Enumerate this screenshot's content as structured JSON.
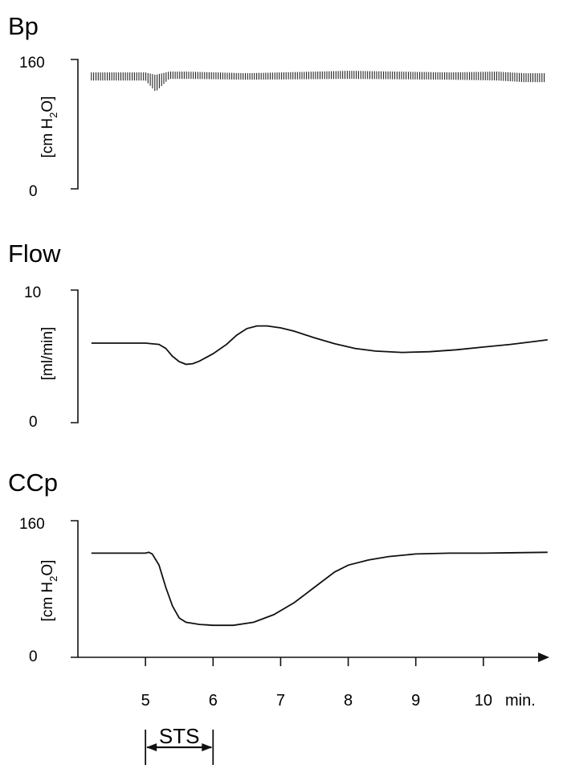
{
  "chart_data": [
    {
      "id": "bp",
      "type": "line",
      "title": "Bp",
      "ylabel": "[cm H2O]",
      "ylabel_main": "[cm H",
      "ylabel_sub": "2",
      "ylabel_end": "O]",
      "ylim": [
        0,
        160
      ],
      "yticks": [
        {
          "value": 0,
          "label": "0"
        },
        {
          "value": 160,
          "label": "160"
        }
      ],
      "xlim": [
        4.0,
        11.0
      ],
      "series": [
        {
          "band": true,
          "x": [
            4.2,
            5.0,
            5.15,
            5.35,
            5.6,
            6.5,
            8.0,
            9.5,
            10.2,
            10.6,
            10.9
          ],
          "upper": [
            144,
            144,
            141,
            145,
            145,
            143,
            146,
            144,
            145,
            143,
            143
          ],
          "lower": [
            134,
            134,
            120,
            136,
            136,
            135,
            136,
            135,
            134,
            132,
            132
          ]
        }
      ]
    },
    {
      "id": "flow",
      "type": "line",
      "title": "Flow",
      "ylabel": "[ml/min]",
      "ylim": [
        0,
        10
      ],
      "yticks": [
        {
          "value": 0,
          "label": "0"
        },
        {
          "value": 10,
          "label": "10"
        }
      ],
      "xlim": [
        4.0,
        11.0
      ],
      "series": [
        {
          "x": [
            4.2,
            4.6,
            5.0,
            5.2,
            5.3,
            5.4,
            5.5,
            5.6,
            5.7,
            5.8,
            6.0,
            6.2,
            6.35,
            6.5,
            6.65,
            6.8,
            7.0,
            7.2,
            7.5,
            7.8,
            8.1,
            8.4,
            8.8,
            9.2,
            9.6,
            10.0,
            10.4,
            10.8,
            10.95
          ],
          "y": [
            6.0,
            6.0,
            6.0,
            5.9,
            5.6,
            5.0,
            4.6,
            4.4,
            4.45,
            4.65,
            5.2,
            5.9,
            6.6,
            7.1,
            7.3,
            7.3,
            7.15,
            6.9,
            6.4,
            5.95,
            5.6,
            5.4,
            5.3,
            5.35,
            5.5,
            5.7,
            5.9,
            6.15,
            6.25
          ]
        }
      ]
    },
    {
      "id": "ccp",
      "type": "line",
      "title": "CCp",
      "ylabel": "[cm H2O]",
      "ylabel_main": "[cm H",
      "ylabel_sub": "2",
      "ylabel_end": "O]",
      "ylim": [
        0,
        160
      ],
      "yticks": [
        {
          "value": 0,
          "label": "0"
        },
        {
          "value": 160,
          "label": "160"
        }
      ],
      "xlim": [
        4.0,
        11.0
      ],
      "xticks": [
        5,
        6,
        7,
        8,
        9,
        10
      ],
      "xunit": "min.",
      "series": [
        {
          "x": [
            4.2,
            4.7,
            5.0,
            5.05,
            5.1,
            5.2,
            5.3,
            5.4,
            5.5,
            5.6,
            5.8,
            6.0,
            6.3,
            6.6,
            6.9,
            7.2,
            7.5,
            7.8,
            8.0,
            8.3,
            8.6,
            9.0,
            9.5,
            10.0,
            10.5,
            10.95
          ],
          "y": [
            122,
            122,
            122,
            123,
            121,
            108,
            82,
            60,
            46,
            41,
            38.5,
            37.5,
            37.5,
            41,
            50,
            64,
            82,
            100,
            108,
            114,
            118,
            121,
            122,
            122,
            122.5,
            123
          ]
        }
      ]
    }
  ],
  "sts": {
    "label": "STS",
    "start": 5.0,
    "end": 6.0
  }
}
